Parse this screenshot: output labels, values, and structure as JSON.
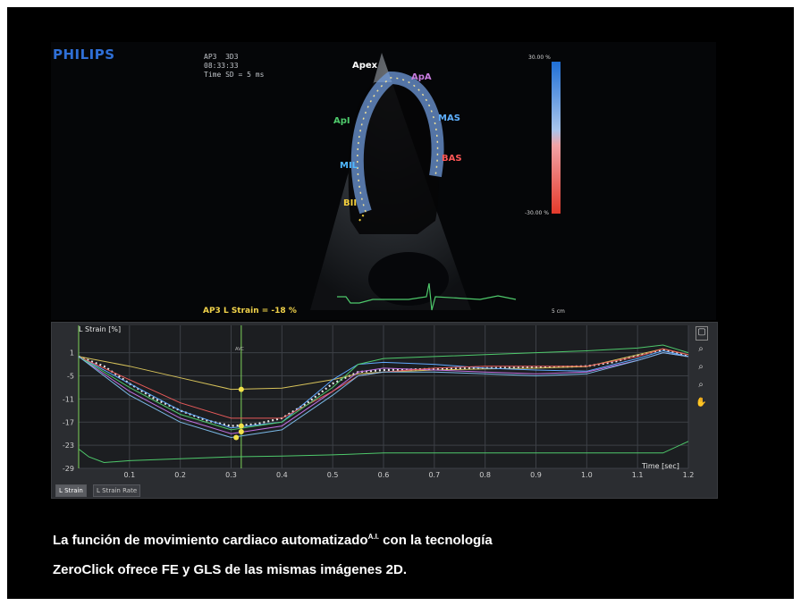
{
  "echo": {
    "brand": "PHILIPS",
    "info_lines": [
      "AP3  3D3",
      "08:33:33",
      "Time SD = 5 ms"
    ],
    "segments": {
      "apex": "Apex",
      "apa": "ApA",
      "api": "ApI",
      "mas": "MAS",
      "bas": "BAS",
      "mil": "MIL",
      "bii": "BII"
    },
    "strain_label": "AP3 L Strain = -18 %",
    "scale_top": "30.00 %",
    "scale_bottom": "-30.00 %",
    "corner_tag": "5 cm",
    "colors": {
      "apex": "#ffffff",
      "apa": "#c97de0",
      "api": "#4ec96b",
      "mas": "#5fb0ff",
      "bas": "#ff5757",
      "mil": "#4fb8ff",
      "bii": "#f3cf3c"
    }
  },
  "graph": {
    "title": "L Strain [%]",
    "time_axis_label": "Time [sec]",
    "cursor_label": "AVC",
    "tabs": [
      "L Strain",
      "L Strain Rate"
    ],
    "tools": [
      "select-icon",
      "zoom-in-icon",
      "zoom-out-icon",
      "zoom-reset-icon",
      "hand-icon"
    ],
    "tool_glyphs": [
      "▢",
      "⌕",
      "⌕",
      "⌕",
      "✋"
    ]
  },
  "caption": {
    "line1_a": "La función de movimiento cardiaco automatizado",
    "line1_sup": "A.I.",
    "line1_b": " con la tecnología",
    "line2": "ZeroClick ofrece FE y GLS de las mismas imágenes 2D."
  },
  "chart_data": {
    "type": "line",
    "ylabel": "L Strain [%]",
    "xlabel": "Time [sec]",
    "xlim": [
      0.0,
      1.2
    ],
    "ylim": [
      -29,
      3
    ],
    "x_ticks": [
      0.1,
      0.2,
      0.3,
      0.4,
      0.5,
      0.6,
      0.7,
      0.8,
      0.9,
      1.0,
      1.1,
      1.2
    ],
    "y_ticks": [
      1,
      -5,
      -11,
      -17,
      -23,
      -29
    ],
    "cursor_x": 0.32,
    "series": [
      {
        "color": "#e8e8e8",
        "dashed": true,
        "x": [
          0,
          0.05,
          0.1,
          0.15,
          0.2,
          0.25,
          0.3,
          0.35,
          0.4,
          0.45,
          0.5,
          0.55,
          0.6,
          0.7,
          0.8,
          0.9,
          1.0,
          1.05,
          1.1,
          1.15,
          1.2
        ],
        "y": [
          0,
          -2.5,
          -7,
          -11,
          -14,
          -16.5,
          -18,
          -17.5,
          -16,
          -12,
          -7,
          -4,
          -3.5,
          -3.2,
          -3,
          -2.8,
          -2.5,
          -1.5,
          0.3,
          1.8,
          0
        ]
      },
      {
        "color": "#d6c25a",
        "x": [
          0,
          0.1,
          0.2,
          0.3,
          0.4,
          0.5,
          0.55,
          0.6,
          0.7,
          0.8,
          0.9,
          1.0,
          1.1,
          1.15,
          1.2
        ],
        "y": [
          0,
          -2.5,
          -5.5,
          -8.5,
          -8.2,
          -6,
          -4.5,
          -4,
          -3.5,
          -3.2,
          -3,
          -2.6,
          0.5,
          2,
          0.5
        ]
      },
      {
        "color": "#5fa8ff",
        "x": [
          0,
          0.1,
          0.2,
          0.3,
          0.4,
          0.5,
          0.55,
          0.6,
          0.7,
          0.8,
          0.9,
          1.0,
          1.1,
          1.15,
          1.2
        ],
        "y": [
          0,
          -7,
          -14,
          -18.5,
          -17,
          -6,
          -2,
          -1.5,
          -2,
          -3,
          -3.5,
          -3.8,
          -0.5,
          1.5,
          0
        ]
      },
      {
        "color": "#c06fe0",
        "x": [
          0,
          0.1,
          0.2,
          0.3,
          0.4,
          0.5,
          0.55,
          0.6,
          0.7,
          0.8,
          0.9,
          1.0,
          1.1,
          1.15,
          1.2
        ],
        "y": [
          0,
          -9,
          -16,
          -20,
          -18,
          -9,
          -4,
          -3,
          -3.5,
          -4,
          -4.5,
          -4,
          -1,
          1,
          0
        ]
      },
      {
        "color": "#e85a5a",
        "x": [
          0,
          0.1,
          0.2,
          0.3,
          0.4,
          0.5,
          0.55,
          0.6,
          0.7,
          0.8,
          0.9,
          1.0,
          1.1,
          1.15,
          1.2
        ],
        "y": [
          0,
          -6,
          -12,
          -16,
          -16,
          -9,
          -5,
          -4,
          -3,
          -2.5,
          -2.5,
          -2.5,
          0,
          2,
          0.5
        ]
      },
      {
        "color": "#4ec96b",
        "x": [
          0,
          0.1,
          0.2,
          0.3,
          0.4,
          0.5,
          0.55,
          0.6,
          0.7,
          0.8,
          0.9,
          1.0,
          1.1,
          1.15,
          1.2
        ],
        "y": [
          0,
          -8,
          -15,
          -19,
          -17,
          -8,
          -2,
          -0.5,
          0,
          0.5,
          1,
          1.5,
          2.2,
          3,
          1
        ]
      },
      {
        "color": "#7ab9e6",
        "x": [
          0,
          0.1,
          0.2,
          0.3,
          0.4,
          0.5,
          0.55,
          0.6,
          0.7,
          0.8,
          0.9,
          1.0,
          1.1,
          1.15,
          1.2
        ],
        "y": [
          0,
          -10,
          -17,
          -21,
          -19,
          -10,
          -5,
          -4,
          -4,
          -4.5,
          -5,
          -4.5,
          -1,
          1,
          0
        ]
      },
      {
        "color": "#4ec96b",
        "x": [
          0,
          0.02,
          0.05,
          0.1,
          0.2,
          0.3,
          0.4,
          0.5,
          0.6,
          0.7,
          0.8,
          0.9,
          1.0,
          1.1,
          1.15,
          1.2
        ],
        "y": [
          -24,
          -26,
          -27.5,
          -27,
          -26.5,
          -26,
          -25.8,
          -25.5,
          -25,
          -25,
          -25,
          -25,
          -25,
          -25,
          -25,
          -22
        ]
      }
    ],
    "markers": [
      {
        "x": 0.32,
        "y": -8.5
      },
      {
        "x": 0.32,
        "y": -18
      },
      {
        "x": 0.32,
        "y": -19.5
      },
      {
        "x": 0.31,
        "y": -21
      }
    ]
  }
}
